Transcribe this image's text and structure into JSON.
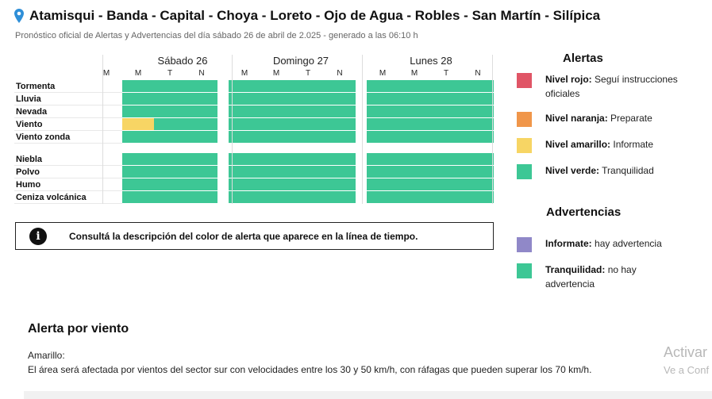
{
  "header": {
    "title": "Atamisqui - Banda - Capital - Choya - Loreto - Ojo de Agua - Robles - San Martín - Silípica",
    "subtitle": "Pronóstico oficial de Alertas y Advertencias del día sábado 26 de abril de 2.025 - generado a las 06:10 h"
  },
  "colors": {
    "green": "#3dc795",
    "yellow": "#f7d564",
    "red": "#e05566",
    "orange": "#f0964a",
    "purple": "#9088c8"
  },
  "timeline": {
    "slot_labels": [
      "M",
      "M",
      "T",
      "N"
    ],
    "days": [
      {
        "label": "Sábado 26"
      },
      {
        "label": "Domingo 27"
      },
      {
        "label": "Lunes 28"
      }
    ],
    "groups": [
      {
        "rows": [
          {
            "label": "Tormenta",
            "days": [
              [
                "green",
                "green",
                "green"
              ],
              [
                "green",
                "green",
                "green",
                "green"
              ],
              [
                "green",
                "green",
                "green",
                "green"
              ]
            ]
          },
          {
            "label": "Lluvia",
            "days": [
              [
                "green",
                "green",
                "green"
              ],
              [
                "green",
                "green",
                "green",
                "green"
              ],
              [
                "green",
                "green",
                "green",
                "green"
              ]
            ]
          },
          {
            "label": "Nevada",
            "days": [
              [
                "green",
                "green",
                "green"
              ],
              [
                "green",
                "green",
                "green",
                "green"
              ],
              [
                "green",
                "green",
                "green",
                "green"
              ]
            ]
          },
          {
            "label": "Viento",
            "days": [
              [
                "yellow",
                "green",
                "green"
              ],
              [
                "green",
                "green",
                "green",
                "green"
              ],
              [
                "green",
                "green",
                "green",
                "green"
              ]
            ]
          },
          {
            "label": "Viento zonda",
            "days": [
              [
                "green",
                "green",
                "green"
              ],
              [
                "green",
                "green",
                "green",
                "green"
              ],
              [
                "green",
                "green",
                "green",
                "green"
              ]
            ]
          }
        ]
      },
      {
        "rows": [
          {
            "label": "Niebla",
            "days": [
              [
                "green",
                "green",
                "green"
              ],
              [
                "green",
                "green",
                "green",
                "green"
              ],
              [
                "green",
                "green",
                "green",
                "green"
              ]
            ]
          },
          {
            "label": "Polvo",
            "days": [
              [
                "green",
                "green",
                "green"
              ],
              [
                "green",
                "green",
                "green",
                "green"
              ],
              [
                "green",
                "green",
                "green",
                "green"
              ]
            ]
          },
          {
            "label": "Humo",
            "days": [
              [
                "green",
                "green",
                "green"
              ],
              [
                "green",
                "green",
                "green",
                "green"
              ],
              [
                "green",
                "green",
                "green",
                "green"
              ]
            ]
          },
          {
            "label": "Ceniza volcánica",
            "days": [
              [
                "green",
                "green",
                "green"
              ],
              [
                "green",
                "green",
                "green",
                "green"
              ],
              [
                "green",
                "green",
                "green",
                "green"
              ]
            ]
          }
        ]
      }
    ]
  },
  "info_box": {
    "icon": "info-icon",
    "text": "Consultá la descripción del color de alerta que aparece en la línea de tiempo."
  },
  "legend": {
    "alerts_title": "Alertas",
    "alerts": [
      {
        "name": "Nivel rojo:",
        "desc": "Seguí instrucciones oficiales",
        "color": "red"
      },
      {
        "name": "Nivel naranja:",
        "desc": "Preparate",
        "color": "orange"
      },
      {
        "name": "Nivel amarillo:",
        "desc": "Informate",
        "color": "yellow"
      },
      {
        "name": "Nivel verde:",
        "desc": "Tranquilidad",
        "color": "green"
      }
    ],
    "warnings_title": "Advertencias",
    "warnings": [
      {
        "name": "Informate:",
        "desc": "hay advertencia",
        "color": "purple"
      },
      {
        "name": "Tranquilidad:",
        "desc": "no hay advertencia",
        "color": "green"
      }
    ]
  },
  "alert_detail": {
    "title": "Alerta por viento",
    "level": "Amarillo:",
    "description": "El área será afectada por vientos del sector sur con velocidades entre los 30 y 50 km/h, con ráfagas que pueden superar los 70 km/h."
  },
  "watermark": {
    "line1": "Activar",
    "line2": "Ve a Conf"
  }
}
